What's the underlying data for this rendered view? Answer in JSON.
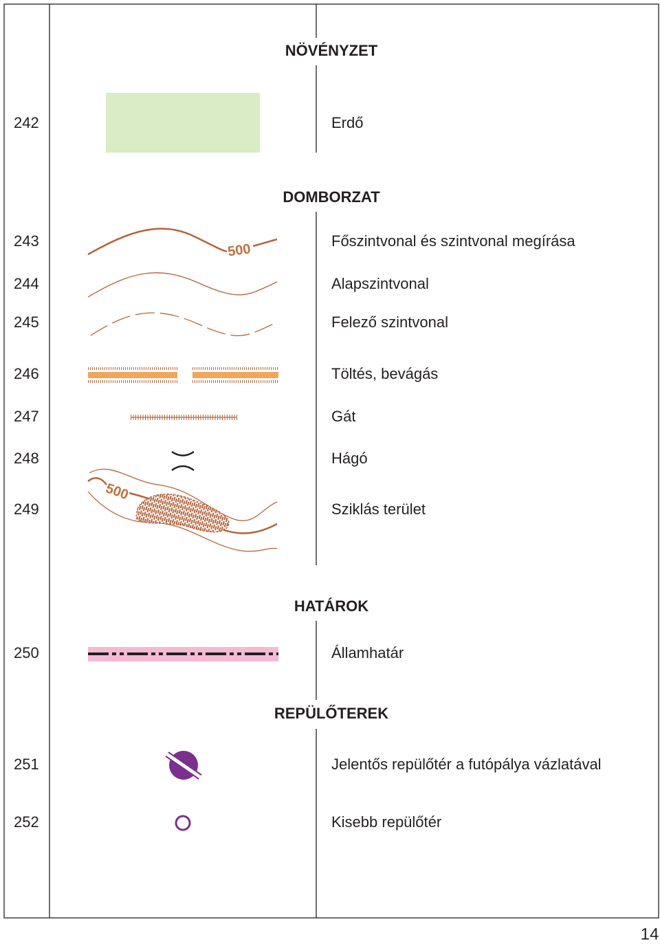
{
  "sections": [
    {
      "heading": "NÖVÉNYZET",
      "rows": [
        {
          "number": "242",
          "label": "Erdő"
        }
      ]
    },
    {
      "heading": "DOMBORZAT",
      "rows": [
        {
          "number": "243",
          "label": "Főszintvonal  és szintvonal megírása",
          "symbol_label": "500"
        },
        {
          "number": "244",
          "label": "Alapszintvonal"
        },
        {
          "number": "245",
          "label": "Felező szintvonal"
        },
        {
          "number": "246",
          "label": "Töltés, bevágás"
        },
        {
          "number": "247",
          "label": "Gát"
        },
        {
          "number": "248",
          "label": "Hágó"
        },
        {
          "number": "249",
          "label": "Sziklás terület",
          "symbol_label": "500"
        }
      ]
    },
    {
      "heading": "HATÁROK",
      "rows": [
        {
          "number": "250",
          "label": "Államhatár"
        }
      ]
    },
    {
      "heading": "REPÜLŐTEREK",
      "rows": [
        {
          "number": "251",
          "label": "Jelentős repülőtér a futópálya vázlatával"
        },
        {
          "number": "252",
          "label": "Kisebb repülőtér"
        }
      ]
    }
  ],
  "page_number": "14"
}
